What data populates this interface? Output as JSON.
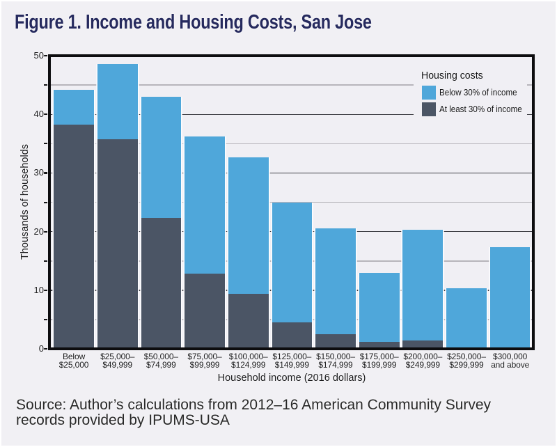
{
  "title": "Figure 1. Income and Housing Costs, San Jose",
  "source_note": {
    "lines": [
      "Source: Author’s calculations from 2012–16 American Community Survey",
      "records provided by IPUMS-USA"
    ]
  },
  "colors": {
    "page_background": "#f1f0f4",
    "plot_background": "#f0eff4",
    "axis_frame": "#0d0d0f",
    "major_gridline": "#3e3e44",
    "minor_gridline": "#b7b5bb",
    "title_navy": "#262a5e",
    "below_30_blue": "#4fa7da",
    "at_least_30_slate": "#4b5565"
  },
  "chart_data": {
    "type": "bar",
    "stacked": true,
    "title": "Figure 1. Income and Housing Costs, San Jose",
    "xlabel": "Household income (2016 dollars)",
    "ylabel": "Thousands of households",
    "ylim": [
      0,
      50
    ],
    "ytick_labels": [
      0,
      10,
      20,
      30,
      40,
      50
    ],
    "gridline_step": 5,
    "grid": true,
    "legend_title": "Housing costs",
    "legend_position": "top-right-inside",
    "categories": [
      "Below $25,000",
      "$25,000–$49,999",
      "$50,000–$74,999",
      "$75,000–$99,999",
      "$100,000–$124,999",
      "$125,000–$149,999",
      "$150,000–$174,999",
      "$175,000–$199,999",
      "$200,000–$249,999",
      "$250,000–$299,999",
      "$300,000 and above"
    ],
    "category_tick_lines": [
      [
        "Below",
        "$25,000"
      ],
      [
        "$25,000–",
        "$49,999"
      ],
      [
        "$50,000–",
        "$74,999"
      ],
      [
        "$75,000–",
        "$99,999"
      ],
      [
        "$100,000–",
        "$124,999"
      ],
      [
        "$125,000–",
        "$149,999"
      ],
      [
        "$150,000–",
        "$174,999"
      ],
      [
        "$175,000–",
        "$199,999"
      ],
      [
        "$200,000–",
        "$249,999"
      ],
      [
        "$250,000–",
        "$299,999"
      ],
      [
        "$300,000",
        "and above"
      ]
    ],
    "series": [
      {
        "name": "Below 30% of income",
        "color": "#4fa7da",
        "stack_position": "top",
        "values": [
          5.9,
          12.8,
          20.7,
          23.3,
          23.3,
          20.5,
          18.1,
          11.8,
          18.9,
          10.4,
          17.4
        ]
      },
      {
        "name": "At least 30% of income",
        "color": "#4b5565",
        "stack_position": "bottom",
        "values": [
          38.3,
          35.8,
          22.3,
          12.9,
          9.4,
          4.5,
          2.5,
          1.2,
          1.4,
          0,
          0
        ]
      }
    ]
  }
}
